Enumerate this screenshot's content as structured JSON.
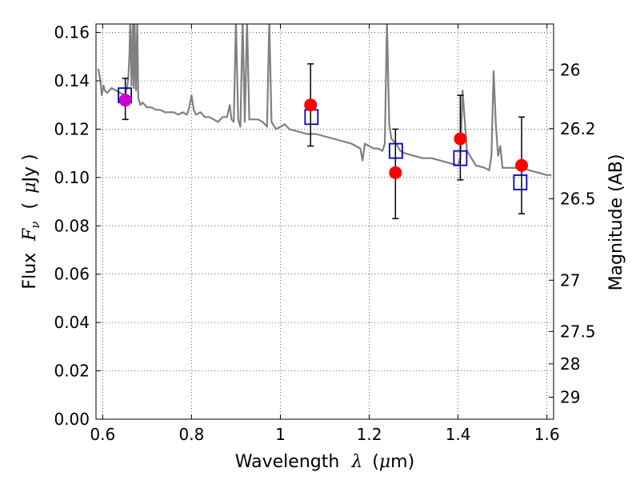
{
  "chart_data": {
    "type": "scatter",
    "xlabel_text": "Wavelength",
    "xlabel_symbol": "λ",
    "xlabel_unit_open": "(",
    "xlabel_unit_symbol": "μ",
    "xlabel_unit_rest": "m)",
    "ylabel_text": "Flux",
    "ylabel_symbol": "F",
    "ylabel_subscript": "ν",
    "ylabel_unit_open": "(",
    "ylabel_unit_symbol": "μ",
    "ylabel_unit_rest": "Jy )",
    "y2label": "Magnitude (AB)",
    "xlim": [
      0.585,
      1.615
    ],
    "ylim": [
      0.0,
      0.1635
    ],
    "grid": true,
    "x_ticks": [
      {
        "value": 0.6,
        "label": "0.6"
      },
      {
        "value": 0.8,
        "label": "0.8"
      },
      {
        "value": 1.0,
        "label": "1"
      },
      {
        "value": 1.2,
        "label": "1.2"
      },
      {
        "value": 1.4,
        "label": "1.4"
      },
      {
        "value": 1.6,
        "label": "1.6"
      }
    ],
    "y_ticks": [
      {
        "value": 0.0,
        "label": "0.00"
      },
      {
        "value": 0.02,
        "label": "0.02"
      },
      {
        "value": 0.04,
        "label": "0.04"
      },
      {
        "value": 0.06,
        "label": "0.06"
      },
      {
        "value": 0.08,
        "label": "0.08"
      },
      {
        "value": 0.1,
        "label": "0.10"
      },
      {
        "value": 0.12,
        "label": "0.12"
      },
      {
        "value": 0.14,
        "label": "0.14"
      },
      {
        "value": 0.16,
        "label": "0.16"
      }
    ],
    "y2_ticks": [
      {
        "flux": 0.1445,
        "label": "26"
      },
      {
        "flux": 0.1202,
        "label": "26.2"
      },
      {
        "flux": 0.0912,
        "label": "26.5"
      },
      {
        "flux": 0.0575,
        "label": "27"
      },
      {
        "flux": 0.0363,
        "label": "27.5"
      },
      {
        "flux": 0.0229,
        "label": "28"
      },
      {
        "flux": 0.0091,
        "label": "29"
      }
    ],
    "series": [
      {
        "type": "line",
        "color": "#808080",
        "x": [
          0.59,
          0.595,
          0.598,
          0.602,
          0.605,
          0.61,
          0.62,
          0.63,
          0.64,
          0.65,
          0.655,
          0.658,
          0.66,
          0.662,
          0.665,
          0.668,
          0.67,
          0.672,
          0.675,
          0.678,
          0.68,
          0.685,
          0.69,
          0.7,
          0.71,
          0.72,
          0.73,
          0.74,
          0.75,
          0.76,
          0.77,
          0.78,
          0.79,
          0.795,
          0.8,
          0.805,
          0.81,
          0.82,
          0.83,
          0.84,
          0.85,
          0.86,
          0.87,
          0.88,
          0.886,
          0.89,
          0.895,
          0.9,
          0.905,
          0.91,
          0.915,
          0.92,
          0.925,
          0.93,
          0.94,
          0.95,
          0.96,
          0.97,
          0.975,
          0.98,
          0.99,
          1.0,
          1.01,
          1.02,
          1.04,
          1.06,
          1.08,
          1.1,
          1.12,
          1.14,
          1.16,
          1.17,
          1.18,
          1.185,
          1.19,
          1.2,
          1.21,
          1.22,
          1.23,
          1.235,
          1.24,
          1.245,
          1.25,
          1.26,
          1.27,
          1.28,
          1.3,
          1.32,
          1.34,
          1.36,
          1.38,
          1.4,
          1.405,
          1.41,
          1.42,
          1.44,
          1.46,
          1.47,
          1.475,
          1.48,
          1.485,
          1.49,
          1.495,
          1.5,
          1.52,
          1.54,
          1.56,
          1.58,
          1.6,
          1.61
        ],
        "y": [
          0.145,
          0.14,
          0.134,
          0.138,
          0.136,
          0.135,
          0.137,
          0.136,
          0.135,
          0.134,
          0.137,
          0.142,
          0.15,
          0.165,
          0.138,
          0.165,
          0.137,
          0.165,
          0.136,
          0.165,
          0.133,
          0.13,
          0.131,
          0.129,
          0.129,
          0.128,
          0.128,
          0.127,
          0.127,
          0.127,
          0.126,
          0.127,
          0.126,
          0.129,
          0.134,
          0.128,
          0.126,
          0.127,
          0.125,
          0.125,
          0.124,
          0.123,
          0.125,
          0.125,
          0.13,
          0.124,
          0.123,
          0.165,
          0.124,
          0.121,
          0.165,
          0.123,
          0.165,
          0.124,
          0.124,
          0.124,
          0.123,
          0.121,
          0.165,
          0.123,
          0.12,
          0.121,
          0.122,
          0.12,
          0.119,
          0.118,
          0.118,
          0.117,
          0.116,
          0.115,
          0.114,
          0.113,
          0.112,
          0.107,
          0.114,
          0.113,
          0.112,
          0.112,
          0.111,
          0.114,
          0.165,
          0.122,
          0.116,
          0.114,
          0.111,
          0.11,
          0.109,
          0.108,
          0.108,
          0.107,
          0.106,
          0.105,
          0.108,
          0.136,
          0.111,
          0.105,
          0.104,
          0.103,
          0.109,
          0.144,
          0.122,
          0.109,
          0.113,
          0.104,
          0.104,
          0.104,
          0.103,
          0.102,
          0.101,
          0.101
        ]
      },
      {
        "type": "scatter",
        "marker": "open-square",
        "color": "#0000cc",
        "x": [
          0.65,
          1.07,
          1.26,
          1.405,
          1.54
        ],
        "y": [
          0.134,
          0.125,
          0.111,
          0.108,
          0.098
        ]
      },
      {
        "type": "scatter",
        "marker": "filled-circle",
        "color": "#ff0000",
        "x": [
          1.068,
          1.259,
          1.405,
          1.543
        ],
        "y": [
          0.13,
          0.102,
          0.116,
          0.105
        ],
        "yerr_low": [
          0.113,
          0.083,
          0.099,
          0.085
        ],
        "yerr_high": [
          0.147,
          0.12,
          0.134,
          0.125
        ]
      },
      {
        "type": "scatter",
        "marker": "filled-circle",
        "color": "#cc00cc",
        "x": [
          0.651
        ],
        "y": [
          0.132
        ],
        "yerr_low": [
          0.124
        ],
        "yerr_high": [
          0.141
        ]
      }
    ]
  }
}
